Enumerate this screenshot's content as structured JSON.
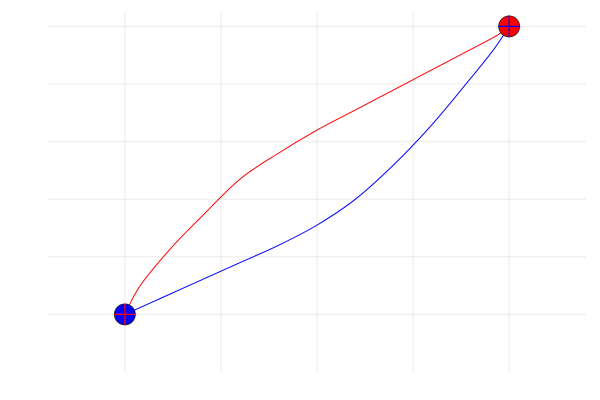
{
  "chart_data": {
    "type": "line",
    "title": "",
    "xlabel": "",
    "ylabel": "",
    "grid": true,
    "legend": false,
    "xlim": [
      -0.2,
      1.2
    ],
    "ylim": [
      -0.2,
      1.05
    ],
    "x_gridlines": [
      0,
      0.25,
      0.5,
      0.75,
      1.0
    ],
    "y_gridlines": [
      0,
      0.2,
      0.4,
      0.6,
      0.8,
      1.0
    ],
    "series": [
      {
        "color": "#ff0000",
        "x": [
          0.0,
          0.04,
          0.12,
          0.2,
          0.3,
          0.4,
          0.5,
          0.6,
          0.7,
          0.8,
          0.9,
          0.97,
          1.0
        ],
        "y": [
          0.0,
          0.1,
          0.23,
          0.34,
          0.47,
          0.56,
          0.64,
          0.71,
          0.78,
          0.85,
          0.92,
          0.97,
          1.0
        ]
      },
      {
        "color": "#0000ff",
        "x": [
          0.0,
          0.1,
          0.2,
          0.3,
          0.4,
          0.5,
          0.6,
          0.7,
          0.8,
          0.9,
          0.96,
          1.0
        ],
        "y": [
          0.0,
          0.06,
          0.12,
          0.18,
          0.24,
          0.31,
          0.4,
          0.52,
          0.66,
          0.82,
          0.92,
          1.0
        ]
      }
    ],
    "markers": [
      {
        "x": 0.0,
        "y": 0.0,
        "fill": "#0000ff",
        "cross": "#ff0000"
      },
      {
        "x": 1.0,
        "y": 1.0,
        "fill": "#ff0000",
        "cross": "#0000ff"
      }
    ]
  }
}
